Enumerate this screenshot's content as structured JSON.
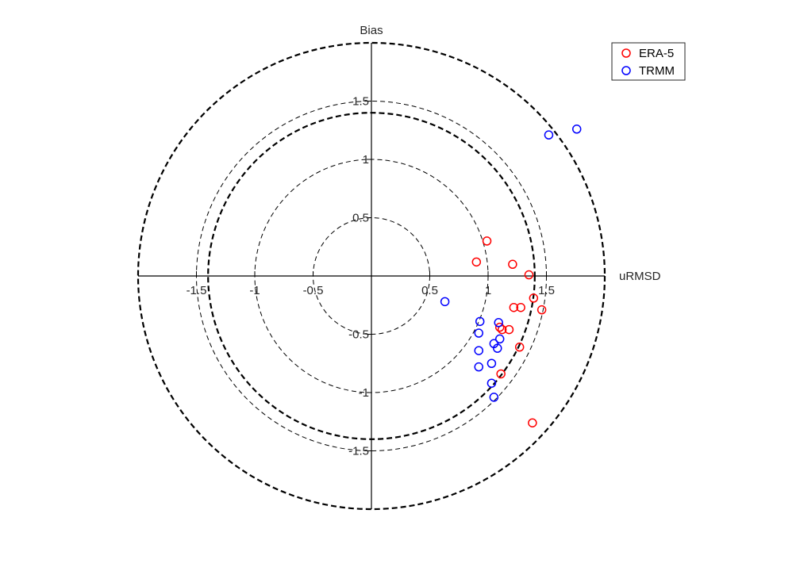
{
  "chart_data": {
    "type": "scatter",
    "xlabel": "uRMSD",
    "ylabel": "Bias",
    "xlim": [
      -2,
      2
    ],
    "ylim": [
      -2,
      2
    ],
    "legend_position": "top-right",
    "x_ticks": [
      {
        "v": -1.5,
        "label": "-1.5"
      },
      {
        "v": -1,
        "label": "-1"
      },
      {
        "v": -0.5,
        "label": "-0.5"
      },
      {
        "v": 0.5,
        "label": "0.5"
      },
      {
        "v": 1,
        "label": "1"
      },
      {
        "v": 1.5,
        "label": "1.5"
      }
    ],
    "y_ticks": [
      {
        "v": 1.5,
        "label": "1.5"
      },
      {
        "v": 1,
        "label": "1"
      },
      {
        "v": 0.5,
        "label": "0.5"
      },
      {
        "v": -0.5,
        "label": "-0.5"
      },
      {
        "v": -1,
        "label": "-1"
      },
      {
        "v": -1.5,
        "label": "-1.5"
      }
    ],
    "circles": [
      {
        "r": 0.5,
        "style": "thin"
      },
      {
        "r": 1.0,
        "style": "thin"
      },
      {
        "r": 1.5,
        "style": "thin"
      },
      {
        "r": 1.4,
        "style": "thick"
      },
      {
        "r": 2.0,
        "style": "thick"
      }
    ],
    "series": [
      {
        "name": "ERA-5",
        "color": "#ff0000",
        "points": [
          [
            0.99,
            0.3
          ],
          [
            0.9,
            0.12
          ],
          [
            1.21,
            0.1
          ],
          [
            1.35,
            0.01
          ],
          [
            1.39,
            -0.19
          ],
          [
            1.46,
            -0.29
          ],
          [
            1.22,
            -0.27
          ],
          [
            1.28,
            -0.27
          ],
          [
            1.1,
            -0.44
          ],
          [
            1.12,
            -0.46
          ],
          [
            1.18,
            -0.46
          ],
          [
            1.27,
            -0.61
          ],
          [
            1.11,
            -0.84
          ],
          [
            1.38,
            -1.26
          ]
        ]
      },
      {
        "name": "TRMM",
        "color": "#0000ff",
        "points": [
          [
            1.52,
            1.21
          ],
          [
            1.76,
            1.26
          ],
          [
            0.63,
            -0.22
          ],
          [
            0.93,
            -0.39
          ],
          [
            0.92,
            -0.49
          ],
          [
            1.09,
            -0.4
          ],
          [
            1.1,
            -0.54
          ],
          [
            1.05,
            -0.58
          ],
          [
            1.08,
            -0.62
          ],
          [
            0.92,
            -0.64
          ],
          [
            1.03,
            -0.75
          ],
          [
            0.92,
            -0.78
          ],
          [
            1.03,
            -0.92
          ],
          [
            1.05,
            -1.04
          ]
        ]
      }
    ]
  }
}
